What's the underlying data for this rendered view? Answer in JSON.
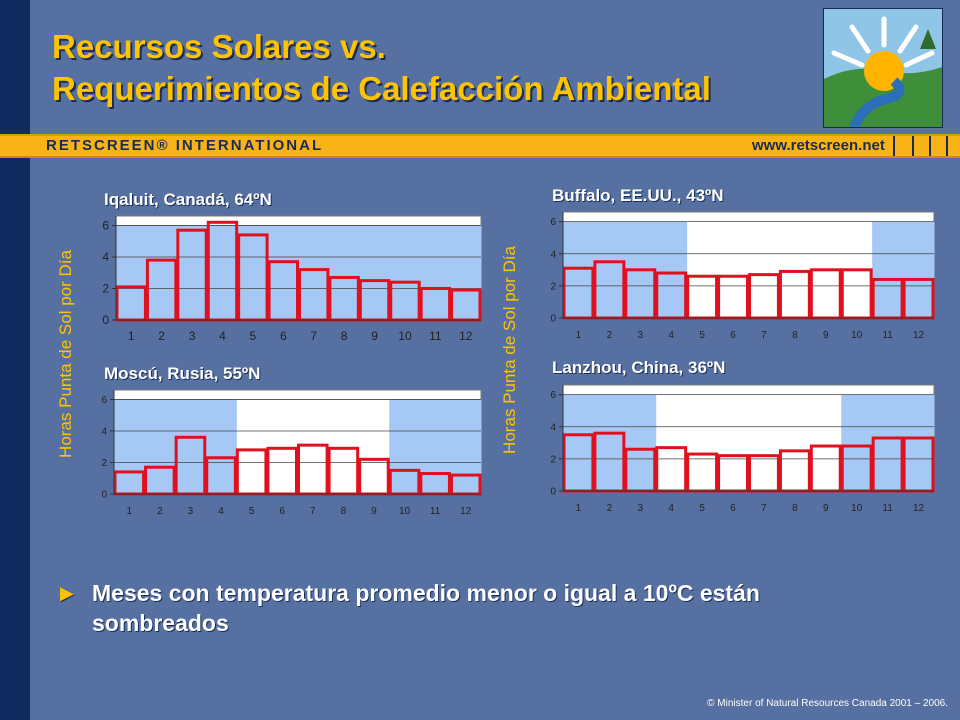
{
  "title": {
    "line1": "Recursos Solares vs.",
    "line2": "Requerimientos de Calefacción Ambiental"
  },
  "banner": {
    "brand": "RETSCREEN® INTERNATIONAL",
    "url": "www.retscreen.net"
  },
  "y_axis_label": "Horas Punta de Sol por Día",
  "bullet": {
    "icon": "triangle-right-icon",
    "text": "Meses con temperatura promedio menor o igual a 10ºC están sombreados"
  },
  "copyright": "© Minister of Natural Resources Canada 2001 – 2006.",
  "colors": {
    "background": "#5670a2",
    "title": "#ffc400",
    "banner": "#f8b416",
    "shade": "#a6c8f5",
    "bar_outline": "#e0101e"
  },
  "chart_data": [
    {
      "type": "bar",
      "title": "Iqaluit, Canadá, 64ºN",
      "categories": [
        "1",
        "2",
        "3",
        "4",
        "5",
        "6",
        "7",
        "8",
        "9",
        "10",
        "11",
        "12"
      ],
      "values": [
        2.1,
        3.8,
        5.7,
        6.2,
        5.4,
        3.7,
        3.2,
        2.7,
        2.5,
        2.4,
        2.0,
        1.9
      ],
      "shaded_months": [
        1,
        2,
        3,
        4,
        5,
        6,
        7,
        8,
        9,
        10,
        11,
        12
      ],
      "ylim": [
        0,
        6.6
      ],
      "yticks": [
        0,
        2,
        4,
        6
      ],
      "grid": true,
      "ylabel": "Horas Punta de Sol por Día"
    },
    {
      "type": "bar",
      "title": "Moscú, Rusia, 55ºN",
      "categories": [
        "1",
        "2",
        "3",
        "4",
        "5",
        "6",
        "7",
        "8",
        "9",
        "10",
        "11",
        "12"
      ],
      "values": [
        1.4,
        1.7,
        3.6,
        2.3,
        2.8,
        2.9,
        3.1,
        2.9,
        2.2,
        1.5,
        1.3,
        1.2
      ],
      "shaded_months": [
        1,
        2,
        3,
        4,
        10,
        11,
        12
      ],
      "ylim": [
        0,
        6.6
      ],
      "yticks": [
        0,
        2,
        4,
        6
      ],
      "grid": true,
      "ylabel": "Horas Punta de Sol por Día"
    },
    {
      "type": "bar",
      "title": "Buffalo, EE.UU., 43ºN",
      "categories": [
        "1",
        "2",
        "3",
        "4",
        "5",
        "6",
        "7",
        "8",
        "9",
        "10",
        "11",
        "12"
      ],
      "values": [
        3.1,
        3.5,
        3.0,
        2.8,
        2.6,
        2.6,
        2.7,
        2.9,
        3.0,
        3.0,
        2.4,
        2.4
      ],
      "shaded_months": [
        1,
        2,
        3,
        4,
        11,
        12
      ],
      "ylim": [
        0,
        6.6
      ],
      "yticks": [
        0,
        2,
        4,
        6
      ],
      "grid": true,
      "ylabel": "Horas Punta de Sol por Día"
    },
    {
      "type": "bar",
      "title": "Lanzhou, China, 36ºN",
      "categories": [
        "1",
        "2",
        "3",
        "4",
        "5",
        "6",
        "7",
        "8",
        "9",
        "10",
        "11",
        "12"
      ],
      "values": [
        3.5,
        3.6,
        2.6,
        2.7,
        2.3,
        2.2,
        2.2,
        2.5,
        2.8,
        2.8,
        3.3,
        3.3
      ],
      "shaded_months": [
        1,
        2,
        3,
        10,
        11,
        12
      ],
      "ylim": [
        0,
        6.6
      ],
      "yticks": [
        0,
        2,
        4,
        6
      ],
      "grid": true,
      "ylabel": "Horas Punta de Sol por Día"
    }
  ]
}
